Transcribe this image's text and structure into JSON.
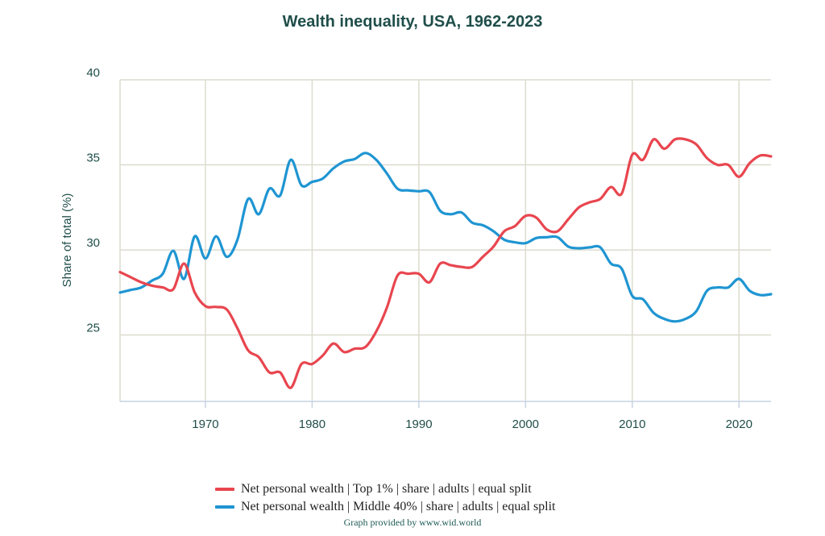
{
  "chart_data": {
    "type": "line",
    "title": "Wealth inequality, USA, 1962-2023",
    "xlabel": "",
    "ylabel": "Share of total (%)",
    "xlim": [
      1962,
      2023
    ],
    "ylim": [
      21.1,
      40
    ],
    "x_ticks": [
      1970,
      1980,
      1990,
      2000,
      2010,
      2020
    ],
    "y_ticks": [
      25,
      30,
      35,
      40
    ],
    "grid": true,
    "legend_position": "bottom",
    "x": [
      1962,
      1963,
      1964,
      1965,
      1966,
      1967,
      1968,
      1969,
      1970,
      1971,
      1972,
      1973,
      1974,
      1975,
      1976,
      1977,
      1978,
      1979,
      1980,
      1981,
      1982,
      1983,
      1984,
      1985,
      1986,
      1987,
      1988,
      1989,
      1990,
      1991,
      1992,
      1993,
      1994,
      1995,
      1996,
      1997,
      1998,
      1999,
      2000,
      2001,
      2002,
      2003,
      2004,
      2005,
      2006,
      2007,
      2008,
      2009,
      2010,
      2011,
      2012,
      2013,
      2014,
      2015,
      2016,
      2017,
      2018,
      2019,
      2020,
      2021,
      2022,
      2023
    ],
    "series": [
      {
        "name": "Net personal wealth | Top 1% | share | adults | equal split",
        "color": "#e8464f",
        "values": [
          28.7,
          28.4,
          28.1,
          27.9,
          27.8,
          27.7,
          29.2,
          27.5,
          26.7,
          26.65,
          26.5,
          25.4,
          24.1,
          23.7,
          22.8,
          22.8,
          21.9,
          23.3,
          23.3,
          23.8,
          24.5,
          24.0,
          24.2,
          24.3,
          25.2,
          26.6,
          28.5,
          28.6,
          28.6,
          28.1,
          29.2,
          29.1,
          29.0,
          29.0,
          29.6,
          30.2,
          31.1,
          31.4,
          32.0,
          31.9,
          31.2,
          31.1,
          31.8,
          32.5,
          32.8,
          33.0,
          33.7,
          33.3,
          35.6,
          35.3,
          36.5,
          35.95,
          36.5,
          36.5,
          36.2,
          35.4,
          35.0,
          35.0,
          34.3,
          35.1,
          35.55,
          35.5
        ]
      },
      {
        "name": "Net personal wealth | Middle 40% | share | adults | equal split",
        "color": "#1f95d2",
        "values": [
          27.5,
          27.65,
          27.8,
          28.2,
          28.6,
          29.95,
          28.3,
          30.8,
          29.5,
          30.8,
          29.6,
          30.6,
          33.0,
          32.1,
          33.6,
          33.2,
          35.3,
          33.8,
          34.0,
          34.2,
          34.8,
          35.2,
          35.35,
          35.7,
          35.3,
          34.5,
          33.6,
          33.5,
          33.45,
          33.4,
          32.3,
          32.1,
          32.2,
          31.6,
          31.45,
          31.1,
          30.6,
          30.45,
          30.4,
          30.7,
          30.75,
          30.75,
          30.2,
          30.1,
          30.15,
          30.15,
          29.2,
          28.9,
          27.3,
          27.1,
          26.3,
          25.95,
          25.8,
          25.95,
          26.4,
          27.6,
          27.8,
          27.8,
          28.3,
          27.6,
          27.35,
          27.4
        ]
      }
    ]
  },
  "credit": "Graph provided by www.wid.world"
}
